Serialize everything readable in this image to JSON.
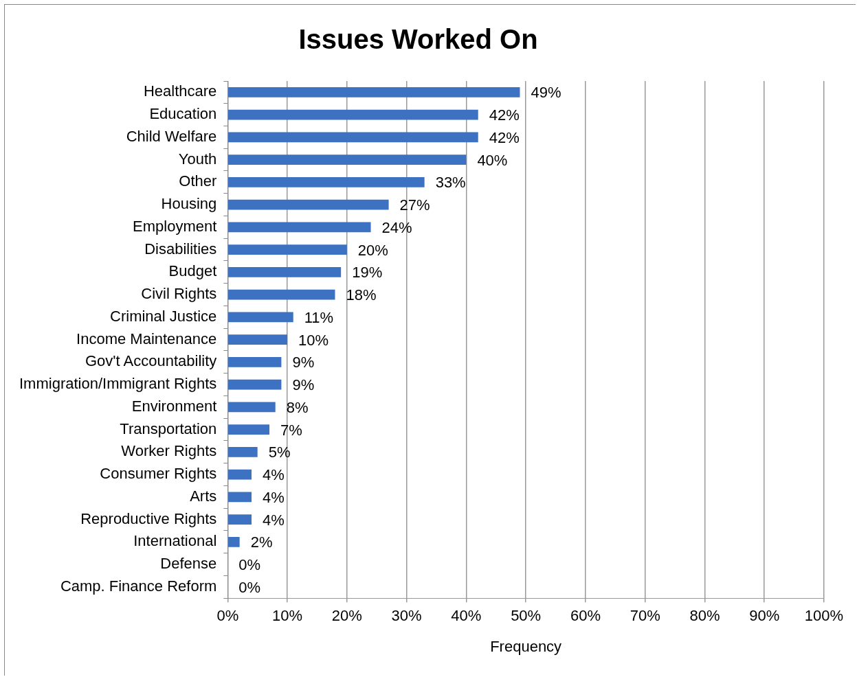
{
  "chart_data": {
    "type": "bar",
    "orientation": "horizontal",
    "title": "Issues Worked On",
    "xlabel": "Frequency",
    "categories": [
      "Healthcare",
      "Education",
      "Child Welfare",
      "Youth",
      "Other",
      "Housing",
      "Employment",
      "Disabilities",
      "Budget",
      "Civil Rights",
      "Criminal Justice",
      "Income Maintenance",
      "Gov't Accountability",
      "Immigration/Immigrant Rights",
      "Environment",
      "Transportation",
      "Worker Rights",
      "Consumer Rights",
      "Arts",
      "Reproductive Rights",
      "International",
      "Defense",
      "Camp. Finance Reform"
    ],
    "values": [
      49,
      42,
      42,
      40,
      33,
      27,
      24,
      20,
      19,
      18,
      11,
      10,
      9,
      9,
      8,
      7,
      5,
      4,
      4,
      4,
      2,
      0,
      0
    ],
    "value_labels": [
      "49%",
      "42%",
      "42%",
      "40%",
      "33%",
      "27%",
      "24%",
      "20%",
      "19%",
      "18%",
      "11%",
      "10%",
      "9%",
      "9%",
      "8%",
      "7%",
      "5%",
      "4%",
      "4%",
      "4%",
      "2%",
      "0%",
      "0%"
    ],
    "color": "#3d72c2",
    "xlim": [
      0,
      100
    ],
    "xticks": [
      {
        "value": 0,
        "label": "0%"
      },
      {
        "value": 10,
        "label": "10%"
      },
      {
        "value": 20,
        "label": "20%"
      },
      {
        "value": 30,
        "label": "30%"
      },
      {
        "value": 40,
        "label": "40%"
      },
      {
        "value": 50,
        "label": "50%"
      },
      {
        "value": 60,
        "label": "60%"
      },
      {
        "value": 70,
        "label": "70%"
      },
      {
        "value": 80,
        "label": "80%"
      },
      {
        "value": 90,
        "label": "90%"
      },
      {
        "value": 100,
        "label": "100%"
      }
    ],
    "grid": "x",
    "legend": false
  }
}
